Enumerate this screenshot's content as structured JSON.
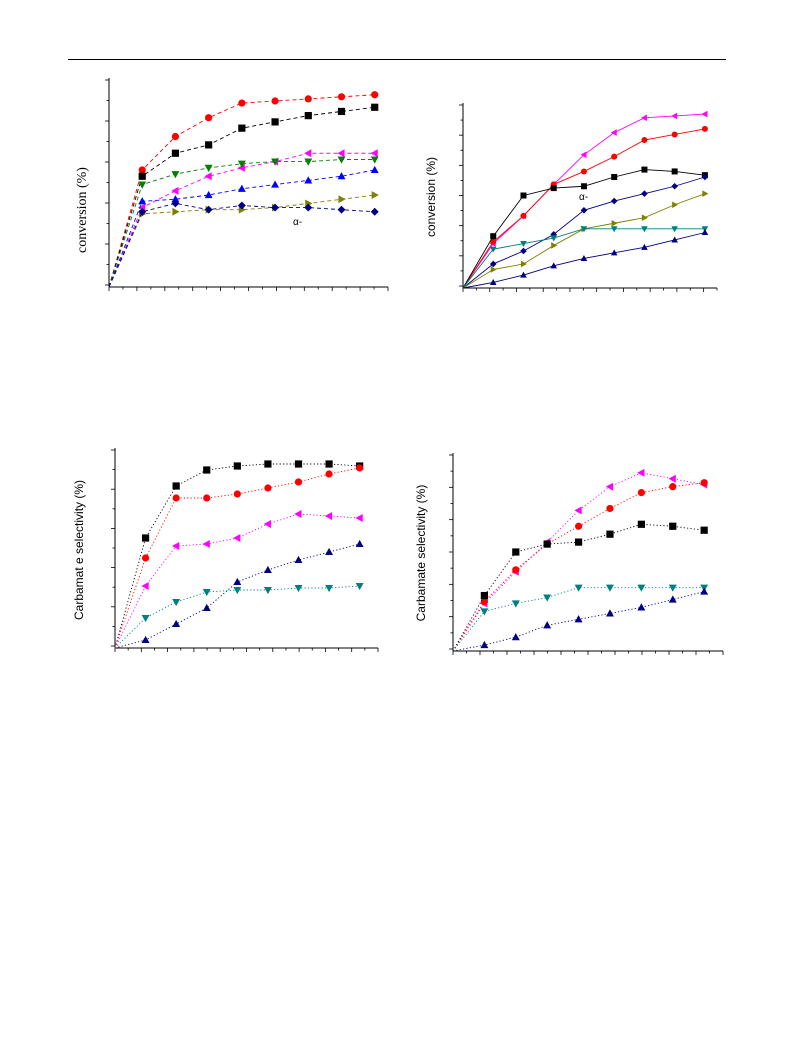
{
  "chart_data": [
    {
      "type": "line",
      "ylabel": "conversion (%)",
      "annotation": "α-",
      "x": [
        0,
        1,
        2,
        3,
        4,
        5,
        6,
        7,
        8
      ],
      "xlim": [
        0,
        8.4
      ],
      "ylim": [
        0,
        100
      ],
      "line_style": "dashed",
      "series": [
        {
          "color": "#ff0000",
          "marker": "circle",
          "values": [
            0,
            56,
            72,
            81,
            88,
            89,
            90,
            91,
            92
          ]
        },
        {
          "color": "#000000",
          "marker": "square",
          "values": [
            0,
            53,
            64,
            68,
            76,
            79,
            82,
            84,
            86
          ]
        },
        {
          "color": "#ff00ff",
          "marker": "triangle-left",
          "values": [
            0,
            38,
            46,
            53,
            57,
            60,
            64,
            64,
            64
          ]
        },
        {
          "color": "#008000",
          "marker": "triangle-down",
          "values": [
            0,
            49,
            54,
            57,
            59,
            60,
            60,
            61,
            61
          ]
        },
        {
          "color": "#0000ff",
          "marker": "triangle-up",
          "values": [
            0,
            41,
            42,
            44,
            47,
            49,
            51,
            53,
            56
          ]
        },
        {
          "color": "#808000",
          "marker": "triangle-right",
          "values": [
            0,
            35,
            36,
            37,
            37,
            38,
            40,
            42,
            44
          ]
        },
        {
          "color": "#000080",
          "marker": "diamond",
          "values": [
            0,
            36,
            40,
            37,
            39,
            38,
            38,
            37,
            36
          ]
        }
      ]
    },
    {
      "type": "line",
      "ylabel": "conversion (%)",
      "annotation": "α-",
      "x": [
        0,
        1,
        2,
        3,
        4,
        5,
        6,
        7,
        8
      ],
      "xlim": [
        0,
        8.4
      ],
      "ylim": [
        0,
        100
      ],
      "line_style": "solid",
      "series": [
        {
          "color": "#ff00ff",
          "marker": "triangle-left",
          "values": [
            0,
            24,
            39,
            56,
            72,
            84,
            92,
            93,
            94
          ]
        },
        {
          "color": "#ff0000",
          "marker": "circle",
          "values": [
            0,
            25,
            39,
            56,
            63,
            71,
            80,
            83,
            86
          ]
        },
        {
          "color": "#000000",
          "marker": "square",
          "values": [
            0,
            28,
            50,
            54,
            55,
            60,
            64,
            63,
            61
          ]
        },
        {
          "color": "#000080",
          "marker": "diamond",
          "values": [
            0,
            13,
            20,
            29,
            42,
            47,
            51,
            55,
            60
          ]
        },
        {
          "color": "#808000",
          "marker": "triangle-right",
          "values": [
            0,
            10,
            13,
            23,
            32,
            35,
            38,
            45,
            51
          ]
        },
        {
          "color": "#008080",
          "marker": "triangle-down",
          "values": [
            0,
            21,
            24,
            27,
            32,
            32,
            32,
            32,
            32
          ]
        },
        {
          "color": "#000080",
          "marker": "triangle-up",
          "values": [
            0,
            3,
            7,
            12,
            16,
            19,
            22,
            26,
            30
          ]
        }
      ]
    },
    {
      "type": "line",
      "ylabel": "Carbamat e selectivity (%)",
      "x": [
        0,
        1,
        2,
        3,
        4,
        5,
        6,
        7,
        8
      ],
      "xlim": [
        0,
        8.6
      ],
      "ylim": [
        0,
        100
      ],
      "line_style": "dotted",
      "series": [
        {
          "color": "#000000",
          "marker": "square",
          "values": [
            0,
            55,
            81,
            89,
            91,
            92,
            92,
            92,
            91
          ]
        },
        {
          "color": "#ff0000",
          "marker": "circle",
          "values": [
            0,
            45,
            75,
            75,
            77,
            80,
            83,
            87,
            90
          ]
        },
        {
          "color": "#ff00ff",
          "marker": "triangle-left",
          "values": [
            0,
            31,
            51,
            52,
            55,
            62,
            67,
            66,
            65
          ]
        },
        {
          "color": "#000080",
          "marker": "triangle-up",
          "values": [
            0,
            4,
            12,
            20,
            33,
            39,
            44,
            48,
            52
          ]
        },
        {
          "color": "#008080",
          "marker": "triangle-down",
          "values": [
            0,
            15,
            23,
            28,
            29,
            29,
            30,
            30,
            31
          ]
        }
      ]
    },
    {
      "type": "line",
      "ylabel": "Carbamate selectivity (%)",
      "x": [
        0,
        1,
        2,
        3,
        4,
        5,
        6,
        7,
        8
      ],
      "xlim": [
        0,
        8.6
      ],
      "ylim": [
        0,
        100
      ],
      "line_style": "dotted",
      "series": [
        {
          "color": "#ff00ff",
          "marker": "triangle-left",
          "values": [
            0,
            24,
            40,
            55,
            71,
            83,
            90,
            87,
            84
          ]
        },
        {
          "color": "#ff0000",
          "marker": "circle",
          "values": [
            0,
            25,
            41,
            54,
            63,
            72,
            80,
            83,
            85
          ]
        },
        {
          "color": "#000000",
          "marker": "square",
          "values": [
            0,
            28,
            50,
            54,
            55,
            59,
            64,
            63,
            61
          ]
        },
        {
          "color": "#008080",
          "marker": "triangle-down",
          "values": [
            0,
            20,
            24,
            27,
            32,
            32,
            32,
            32,
            32
          ]
        },
        {
          "color": "#000080",
          "marker": "triangle-up",
          "values": [
            0,
            3,
            7,
            13,
            16,
            19,
            22,
            26,
            30
          ]
        }
      ]
    }
  ]
}
